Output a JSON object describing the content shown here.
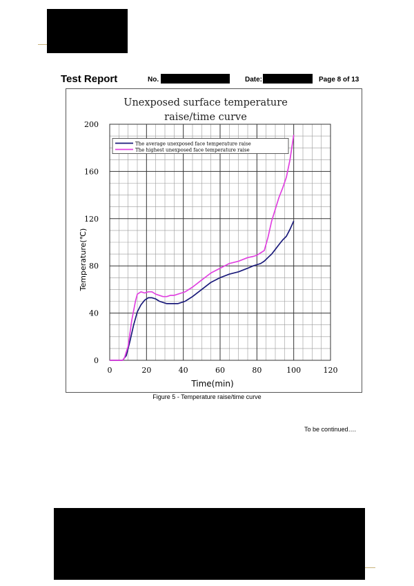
{
  "header": {
    "report_title": "Test Report",
    "no_label": "No.",
    "date_label": "Date:",
    "page_number": "Page 8 of 13"
  },
  "caption": "Figure 5 - Temperature raise/time curve",
  "continued": "To be continued….",
  "colors": {
    "average_series": "#1a1a7a",
    "highest_series": "#e040e0",
    "grid": "#999999",
    "grid_major": "#333333"
  },
  "chart_data": {
    "type": "line",
    "title_lines": [
      "Unexposed surface temperature",
      "raise/time curve"
    ],
    "xlabel": "Time(min)",
    "ylabel": "Temperature(℃)",
    "xlim": [
      0,
      120
    ],
    "ylim": [
      0,
      200
    ],
    "xticks": [
      0,
      20,
      40,
      60,
      80,
      100,
      120
    ],
    "yticks": [
      0,
      40,
      80,
      120,
      160,
      200
    ],
    "grid": true,
    "legend_position": "top-left",
    "series": [
      {
        "name": "The average unexposed face temperature raise",
        "color": "#1a1a7a",
        "x": [
          0,
          7,
          9,
          11,
          13,
          15,
          17,
          19,
          21,
          23,
          25,
          27,
          29,
          31,
          33,
          35,
          37,
          39,
          41,
          45,
          50,
          55,
          60,
          65,
          70,
          75,
          78,
          80,
          82,
          84,
          86,
          88,
          90,
          92,
          94,
          96,
          98,
          100
        ],
        "y": [
          0,
          0,
          4,
          16,
          30,
          41,
          47,
          51,
          53,
          53,
          52,
          50,
          49,
          48,
          48,
          48,
          48,
          49,
          50,
          54,
          60,
          66,
          70,
          73,
          75,
          78,
          80,
          81,
          82,
          84,
          87,
          90,
          94,
          98,
          102,
          105,
          111,
          118
        ]
      },
      {
        "name": "The highest unexposed face temperature raise",
        "color": "#e040e0",
        "x": [
          0,
          7,
          8,
          10,
          12,
          14,
          15,
          17,
          19,
          21,
          23,
          25,
          27,
          29,
          31,
          33,
          35,
          37,
          39,
          41,
          45,
          50,
          55,
          60,
          65,
          70,
          75,
          78,
          80,
          82,
          84,
          86,
          88,
          90,
          92,
          94,
          96,
          98,
          100
        ],
        "y": [
          0,
          0,
          2,
          12,
          34,
          50,
          56,
          58,
          57,
          58,
          58,
          56,
          55,
          54,
          54,
          55,
          55,
          56,
          57,
          58,
          62,
          68,
          74,
          78,
          82,
          84,
          87,
          88,
          89,
          91,
          93,
          104,
          118,
          128,
          138,
          146,
          155,
          170,
          191
        ]
      }
    ]
  }
}
